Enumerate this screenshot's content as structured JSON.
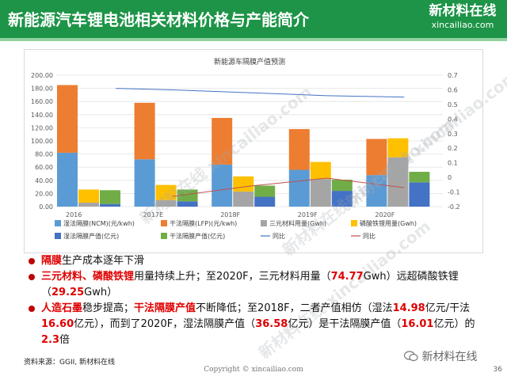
{
  "header": {
    "title": "新能源汽车锂电池相关材料价格与产能简介",
    "logo_name": "新材料在线",
    "logo_url": "xincailiao.com"
  },
  "watermark": "新材料在线 xincailiao.com",
  "chart_data": {
    "type": "bar",
    "title": "新能源车隔膜产值预测",
    "categories": [
      "2016",
      "2017E",
      "2018F",
      "2019F",
      "2020F"
    ],
    "ylim_left": [
      0,
      200
    ],
    "yticks_left": [
      "0.00",
      "20.00",
      "40.00",
      "60.00",
      "80.00",
      "100.00",
      "120.00",
      "140.00",
      "160.00",
      "180.00",
      "200.00"
    ],
    "ylim_right": [
      -0.2,
      0.7
    ],
    "yticks_right": [
      "-0.2",
      "-0.1",
      "0",
      "0.1",
      "0.2",
      "0.3",
      "0.4",
      "0.5",
      "0.6",
      "0.7"
    ],
    "series": [
      {
        "name": "湿法隔膜(NCM)(元/kwh)",
        "color": "#5b9bd5",
        "stack": "A",
        "values": [
          82,
          72,
          64,
          56,
          48
        ],
        "axis": "left"
      },
      {
        "name": "干法隔膜(LFP)(元/kwh)",
        "color": "#ed7d31",
        "stack": "A",
        "values": [
          103,
          86,
          71,
          62,
          55
        ],
        "axis": "left"
      },
      {
        "name": "三元材料用量(Gwh)",
        "color": "#a5a5a5",
        "stack": "B",
        "values": [
          6,
          10,
          23,
          42,
          75
        ],
        "axis": "left"
      },
      {
        "name": "磷酸铁锂用量(Gwh)",
        "color": "#ffc000",
        "stack": "B",
        "values": [
          20,
          23,
          23,
          26,
          29
        ],
        "axis": "left"
      },
      {
        "name": "湿法隔膜产值(亿元)",
        "color": "#4472c4",
        "stack": "C",
        "values": [
          4,
          8,
          15,
          24,
          37
        ],
        "axis": "left"
      },
      {
        "name": "干法隔膜产值(亿元)",
        "color": "#70ad47",
        "stack": "C",
        "values": [
          21,
          18,
          17,
          17,
          16
        ],
        "axis": "left"
      },
      {
        "name": "同比",
        "color": "#4472c4",
        "type": "line",
        "axis": "right",
        "x": [
          0.77,
          1.5,
          2.5,
          3.5,
          4.5
        ],
        "values": [
          0.61,
          0.6,
          0.58,
          0.56,
          0.55
        ]
      },
      {
        "name": "同比",
        "color": "#c0504d",
        "type": "line",
        "axis": "right",
        "x": [
          1.5,
          2.5,
          3.5,
          4.5
        ],
        "values": [
          -0.13,
          -0.06,
          -0.005,
          -0.07
        ]
      }
    ],
    "grid": true,
    "legend_position": "bottom"
  },
  "bullets": [
    {
      "parts": [
        {
          "t": "隔膜",
          "hl": true
        },
        {
          "t": "生产成本逐年下滑",
          "hl": false
        }
      ]
    },
    {
      "parts": [
        {
          "t": "三元材料、磷酸铁锂",
          "hl": true
        },
        {
          "t": "用量持续上升；至2020F，三元材料用量（",
          "hl": false
        },
        {
          "t": "74.77",
          "hl": true
        },
        {
          "t": "Gwh）远超磷酸铁锂（",
          "hl": false
        },
        {
          "t": "29.25",
          "hl": true
        },
        {
          "t": "Gwh）",
          "hl": false
        }
      ]
    },
    {
      "parts": [
        {
          "t": "人造石墨",
          "hl": true
        },
        {
          "t": "稳步提高；",
          "hl": false
        },
        {
          "t": "干法隔膜产值",
          "hl": true
        },
        {
          "t": "不断降低；至2018F，二者产值相仿（湿法",
          "hl": false
        },
        {
          "t": "14.98",
          "hl": true
        },
        {
          "t": "亿元/干法",
          "hl": false
        },
        {
          "t": "16.60",
          "hl": true
        },
        {
          "t": "亿元），而到了2020F，湿法隔膜产值（",
          "hl": false
        },
        {
          "t": "36.58",
          "hl": true
        },
        {
          "t": "亿元）是干法隔膜产值（",
          "hl": false
        },
        {
          "t": "16.01",
          "hl": true
        },
        {
          "t": "亿元）的",
          "hl": false
        },
        {
          "t": "2.3",
          "hl": true
        },
        {
          "t": "倍",
          "hl": false
        }
      ]
    }
  ],
  "footer": {
    "source": "资料来源：GGII, 新材料在线",
    "copyright": "Copyright © xincailiao.com",
    "wechat": "新材料在线",
    "page": "36"
  }
}
